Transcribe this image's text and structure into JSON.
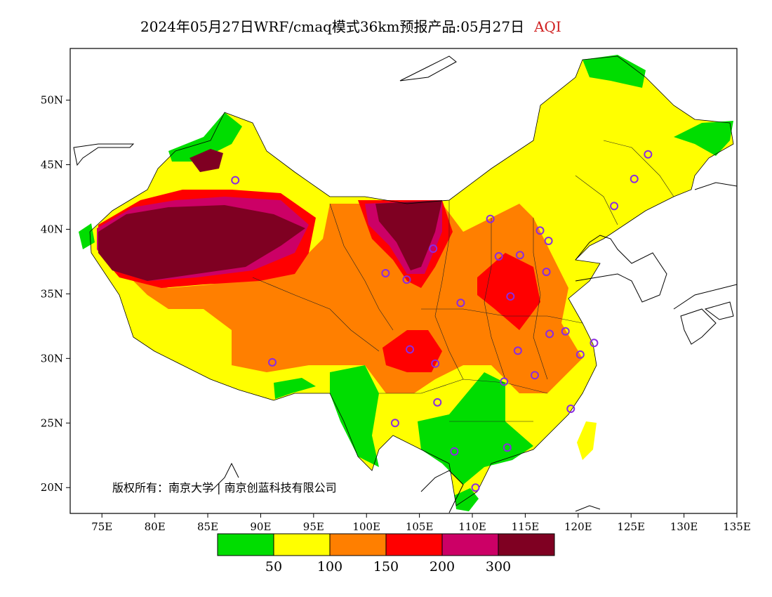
{
  "title": {
    "main": "2024年05月27日WRF/cmaq模式36km预报产品:05月27日",
    "variable": "AQI",
    "variable_color": "#d02020"
  },
  "map": {
    "lat_labels": [
      "50N",
      "45N",
      "40N",
      "35N",
      "30N",
      "25N",
      "20N"
    ],
    "lat_values": [
      50,
      45,
      40,
      35,
      30,
      25,
      20
    ],
    "lon_labels": [
      "75E",
      "80E",
      "85E",
      "90E",
      "95E",
      "100E",
      "105E",
      "110E",
      "115E",
      "120E",
      "125E",
      "130E",
      "135E"
    ],
    "lon_values": [
      75,
      80,
      85,
      90,
      95,
      100,
      105,
      110,
      115,
      120,
      125,
      130,
      135
    ],
    "lon_range": [
      72,
      135
    ],
    "lat_range": [
      18,
      54
    ],
    "background_color": "#ffffff",
    "station_marker_color": "#8a2be2"
  },
  "legend": {
    "colors": [
      "#00dd00",
      "#ffff00",
      "#ff7f00",
      "#ff0000",
      "#cc0066",
      "#7f0022"
    ],
    "labels": [
      "50",
      "100",
      "150",
      "200",
      "300"
    ],
    "thresholds": [
      50,
      100,
      150,
      200,
      300
    ]
  },
  "copyright": "版权所有：南京大学 | 南京创蓝科技有限公司",
  "stations": [
    {
      "lon": 87.6,
      "lat": 43.8
    },
    {
      "lon": 91.1,
      "lat": 29.7
    },
    {
      "lon": 101.8,
      "lat": 36.6
    },
    {
      "lon": 103.8,
      "lat": 36.1
    },
    {
      "lon": 106.3,
      "lat": 38.5
    },
    {
      "lon": 111.7,
      "lat": 40.8
    },
    {
      "lon": 116.4,
      "lat": 39.9
    },
    {
      "lon": 117.2,
      "lat": 39.1
    },
    {
      "lon": 114.5,
      "lat": 38.0
    },
    {
      "lon": 112.5,
      "lat": 37.9
    },
    {
      "lon": 117.0,
      "lat": 36.7
    },
    {
      "lon": 113.6,
      "lat": 34.8
    },
    {
      "lon": 108.9,
      "lat": 34.3
    },
    {
      "lon": 104.1,
      "lat": 30.7
    },
    {
      "lon": 106.5,
      "lat": 29.6
    },
    {
      "lon": 114.3,
      "lat": 30.6
    },
    {
      "lon": 117.3,
      "lat": 31.9
    },
    {
      "lon": 118.8,
      "lat": 32.1
    },
    {
      "lon": 120.2,
      "lat": 30.3
    },
    {
      "lon": 121.5,
      "lat": 31.2
    },
    {
      "lon": 115.9,
      "lat": 28.7
    },
    {
      "lon": 113.0,
      "lat": 28.2
    },
    {
      "lon": 106.7,
      "lat": 26.6
    },
    {
      "lon": 102.7,
      "lat": 25.0
    },
    {
      "lon": 108.3,
      "lat": 22.8
    },
    {
      "lon": 113.3,
      "lat": 23.1
    },
    {
      "lon": 119.3,
      "lat": 26.1
    },
    {
      "lon": 110.3,
      "lat": 20.0
    },
    {
      "lon": 123.4,
      "lat": 41.8
    },
    {
      "lon": 125.3,
      "lat": 43.9
    },
    {
      "lon": 126.6,
      "lat": 45.8
    }
  ]
}
